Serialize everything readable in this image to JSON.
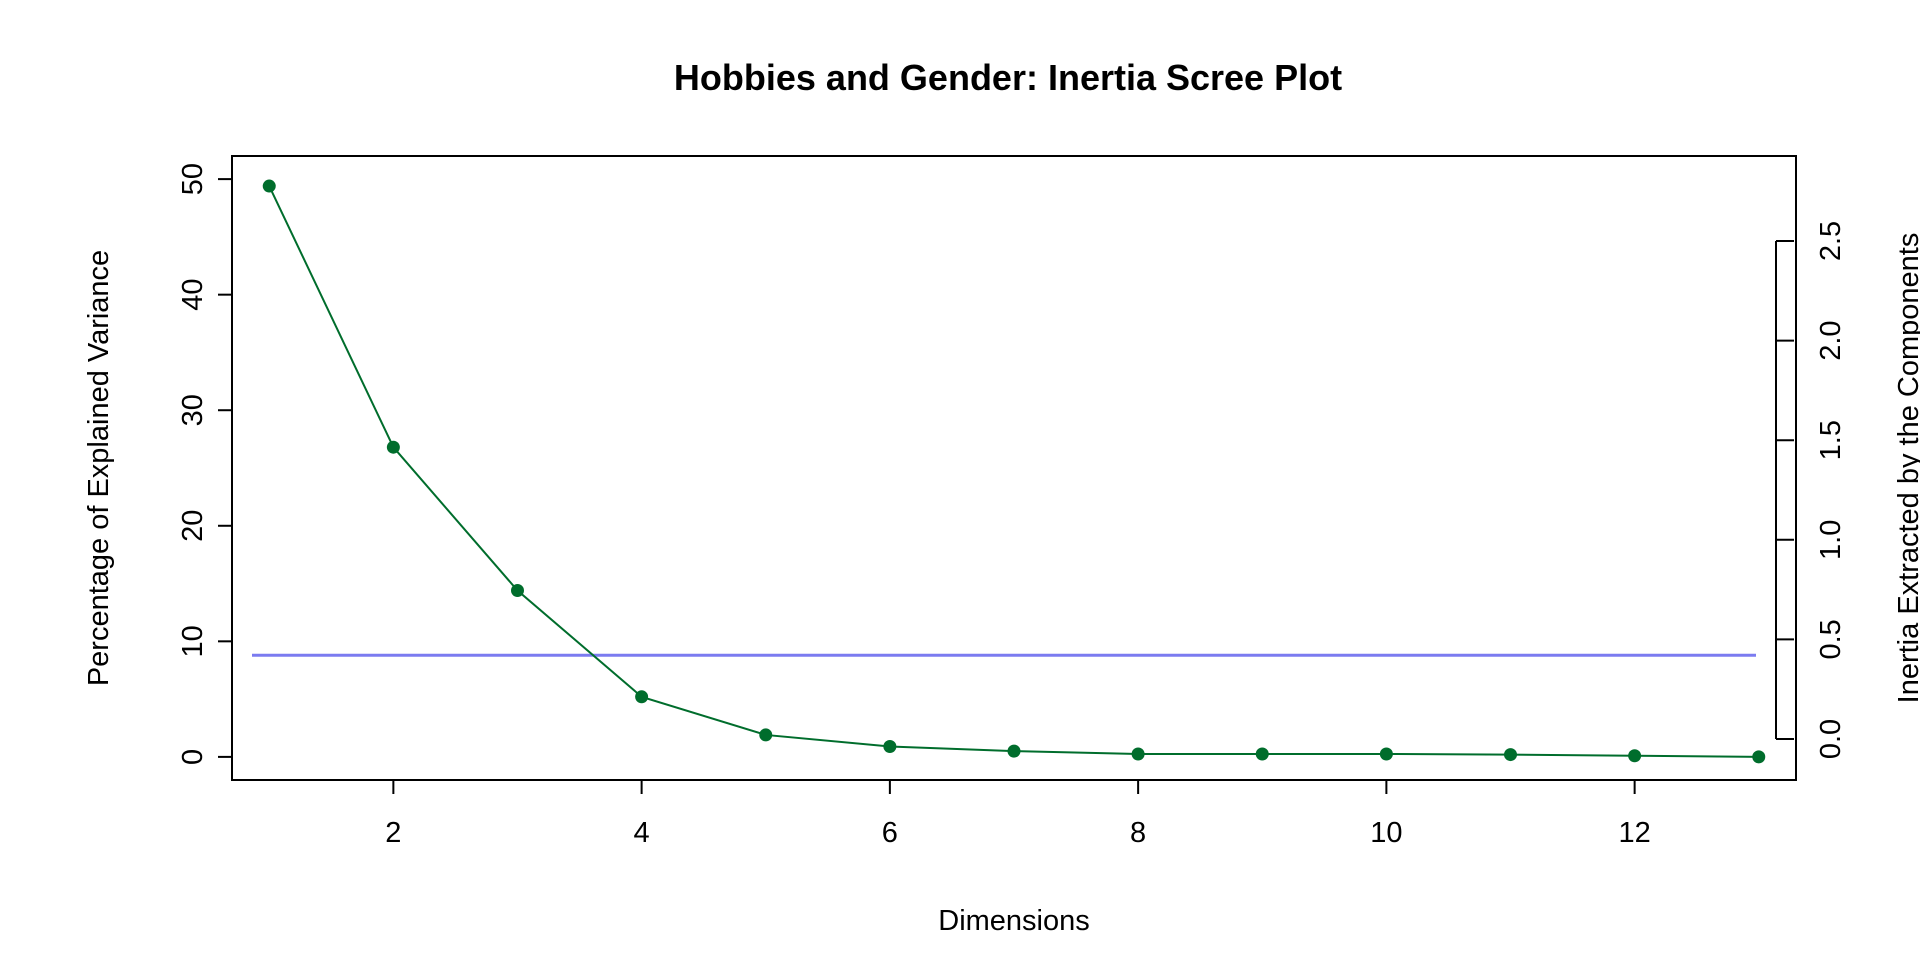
{
  "chart_data": {
    "type": "line",
    "title": "Hobbies and Gender: Inertia Scree Plot",
    "xlabel": "Dimensions",
    "ylabel": "Percentage of Explained Variance",
    "y2label": "Inertia Extracted by the Components",
    "x": [
      1,
      2,
      3,
      4,
      5,
      6,
      7,
      8,
      9,
      10,
      11,
      12,
      13
    ],
    "series": [
      {
        "values": [
          49.4,
          26.8,
          14.4,
          5.2,
          1.9,
          0.9,
          0.5,
          0.25,
          0.25,
          0.25,
          0.2,
          0.1,
          0.0
        ],
        "color": "#006d2c"
      }
    ],
    "reference_line": {
      "y": 8.8,
      "color": "#7b7bf0"
    },
    "xlim": [
      0.7,
      13.3
    ],
    "ylim": [
      -2,
      52
    ],
    "y2lim": [
      0,
      2.5
    ],
    "xticks": [
      "2",
      "4",
      "6",
      "8",
      "10",
      "12"
    ],
    "yticks": [
      "0",
      "10",
      "20",
      "30",
      "40",
      "50"
    ],
    "y2ticks": [
      "0.0",
      "0.5",
      "1.0",
      "1.5",
      "2.0",
      "2.5"
    ],
    "grid": false,
    "legend": "none"
  }
}
